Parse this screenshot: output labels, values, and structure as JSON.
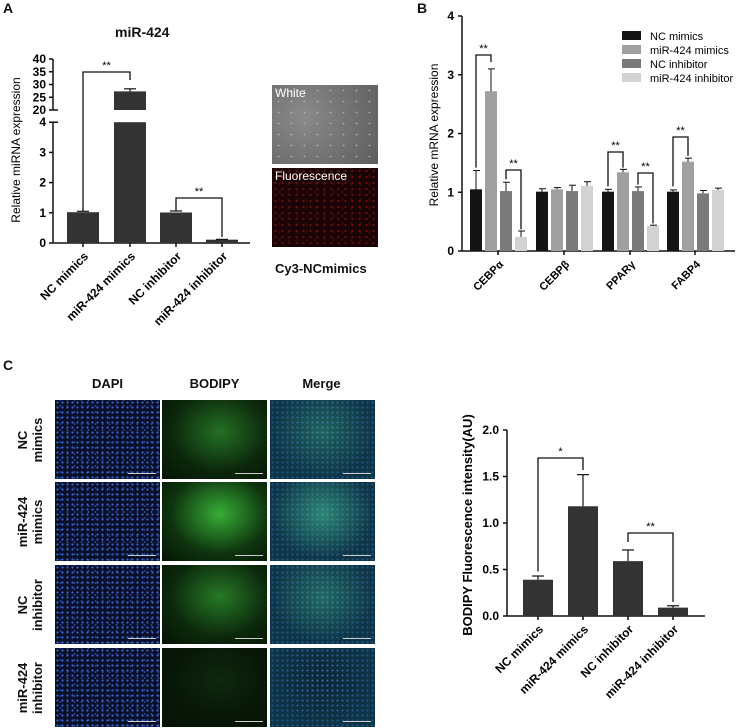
{
  "panels": {
    "a": {
      "letter": "A",
      "title": "miR-424",
      "image_caption": "Cy3-NCmimics",
      "image_labels": {
        "white": "White",
        "fluorescence": "Fluorescence"
      }
    },
    "b": {
      "letter": "B"
    },
    "c": {
      "letter": "C",
      "columns": [
        "DAPI",
        "BODIPY",
        "Merge"
      ],
      "rows": [
        "NC\nmimics",
        "miR-424\nmimics",
        "NC\ninhibitor",
        "miR-424\ninhibitor"
      ]
    }
  },
  "colors": {
    "nc_mimics": "#141414",
    "mir424_mimics": "#a0a0a0",
    "nc_inhibitor": "#7a7a7a",
    "mir424_inhibitor": "#d2d2d2",
    "bar_dark": "#333333"
  },
  "chart_data": [
    {
      "id": "A",
      "type": "bar",
      "title": "miR-424",
      "xlabel": "",
      "ylabel": "Relative  miRNA expression",
      "categories": [
        "NC mimics",
        "miR-424 mimics",
        "NC inhibitor",
        "miR-424 inhibitor"
      ],
      "values": [
        1.02,
        27.3,
        1.01,
        0.11
      ],
      "errors": [
        0.03,
        1.0,
        0.05,
        0.01
      ],
      "y_axis_break": {
        "lower": [
          0,
          4
        ],
        "upper": [
          20,
          40
        ]
      },
      "yticks_lower": [
        0,
        1,
        2,
        3,
        4
      ],
      "yticks_upper": [
        20,
        25,
        30,
        35,
        40
      ],
      "significance": [
        {
          "from": "NC mimics",
          "to": "miR-424 mimics",
          "label": "**"
        },
        {
          "from": "NC inhibitor",
          "to": "miR-424 inhibitor",
          "label": "**"
        }
      ]
    },
    {
      "id": "B",
      "type": "bar",
      "title": "",
      "xlabel": "",
      "ylabel": "Relative mRNA expression",
      "ylim": [
        0,
        4
      ],
      "yticks": [
        0,
        1,
        2,
        3,
        4
      ],
      "categories": [
        "CEBPα",
        "CEBPβ",
        "PPARγ",
        "FABP4"
      ],
      "legend_position": "upper right",
      "series": [
        {
          "name": "NC mimics",
          "values": [
            1.05,
            1.01,
            1.01,
            1.01
          ],
          "errors": [
            0.32,
            0.05,
            0.04,
            0.03
          ]
        },
        {
          "name": "miR-424 mimics",
          "values": [
            2.72,
            1.05,
            1.34,
            1.52
          ],
          "errors": [
            0.38,
            0.03,
            0.05,
            0.06
          ]
        },
        {
          "name": "NC inhibitor",
          "values": [
            1.02,
            1.02,
            1.02,
            0.98
          ],
          "errors": [
            0.15,
            0.1,
            0.07,
            0.05
          ]
        },
        {
          "name": "miR-424 inhibitor",
          "values": [
            0.24,
            1.11,
            0.43,
            1.04
          ],
          "errors": [
            0.1,
            0.07,
            0.01,
            0.03
          ]
        }
      ],
      "significance": [
        {
          "group": "CEBPα",
          "from": "NC mimics",
          "to": "miR-424 mimics",
          "label": "**"
        },
        {
          "group": "CEBPα",
          "from": "NC inhibitor",
          "to": "miR-424 inhibitor",
          "label": "**"
        },
        {
          "group": "PPARγ",
          "from": "NC mimics",
          "to": "miR-424 mimics",
          "label": "**"
        },
        {
          "group": "PPARγ",
          "from": "NC inhibitor",
          "to": "miR-424 inhibitor",
          "label": "**"
        },
        {
          "group": "FABP4",
          "from": "NC mimics",
          "to": "miR-424 mimics",
          "label": "**"
        }
      ]
    },
    {
      "id": "C",
      "type": "bar",
      "title": "",
      "xlabel": "",
      "ylabel": "BODIPY Fluorescence intensity(AU)",
      "ylim": [
        0,
        2.0
      ],
      "yticks": [
        "0.0",
        "0.5",
        "1.0",
        "1.5",
        "2.0"
      ],
      "categories": [
        "NC mimics",
        "miR-424 mimics",
        "NC inhibitor",
        "miR-424 inhibitor"
      ],
      "values": [
        0.39,
        1.18,
        0.59,
        0.09
      ],
      "errors": [
        0.04,
        0.34,
        0.12,
        0.02
      ],
      "significance": [
        {
          "from": "NC mimics",
          "to": "miR-424 mimics",
          "label": "*"
        },
        {
          "from": "NC inhibitor",
          "to": "miR-424 inhibitor",
          "label": "**"
        }
      ]
    }
  ]
}
